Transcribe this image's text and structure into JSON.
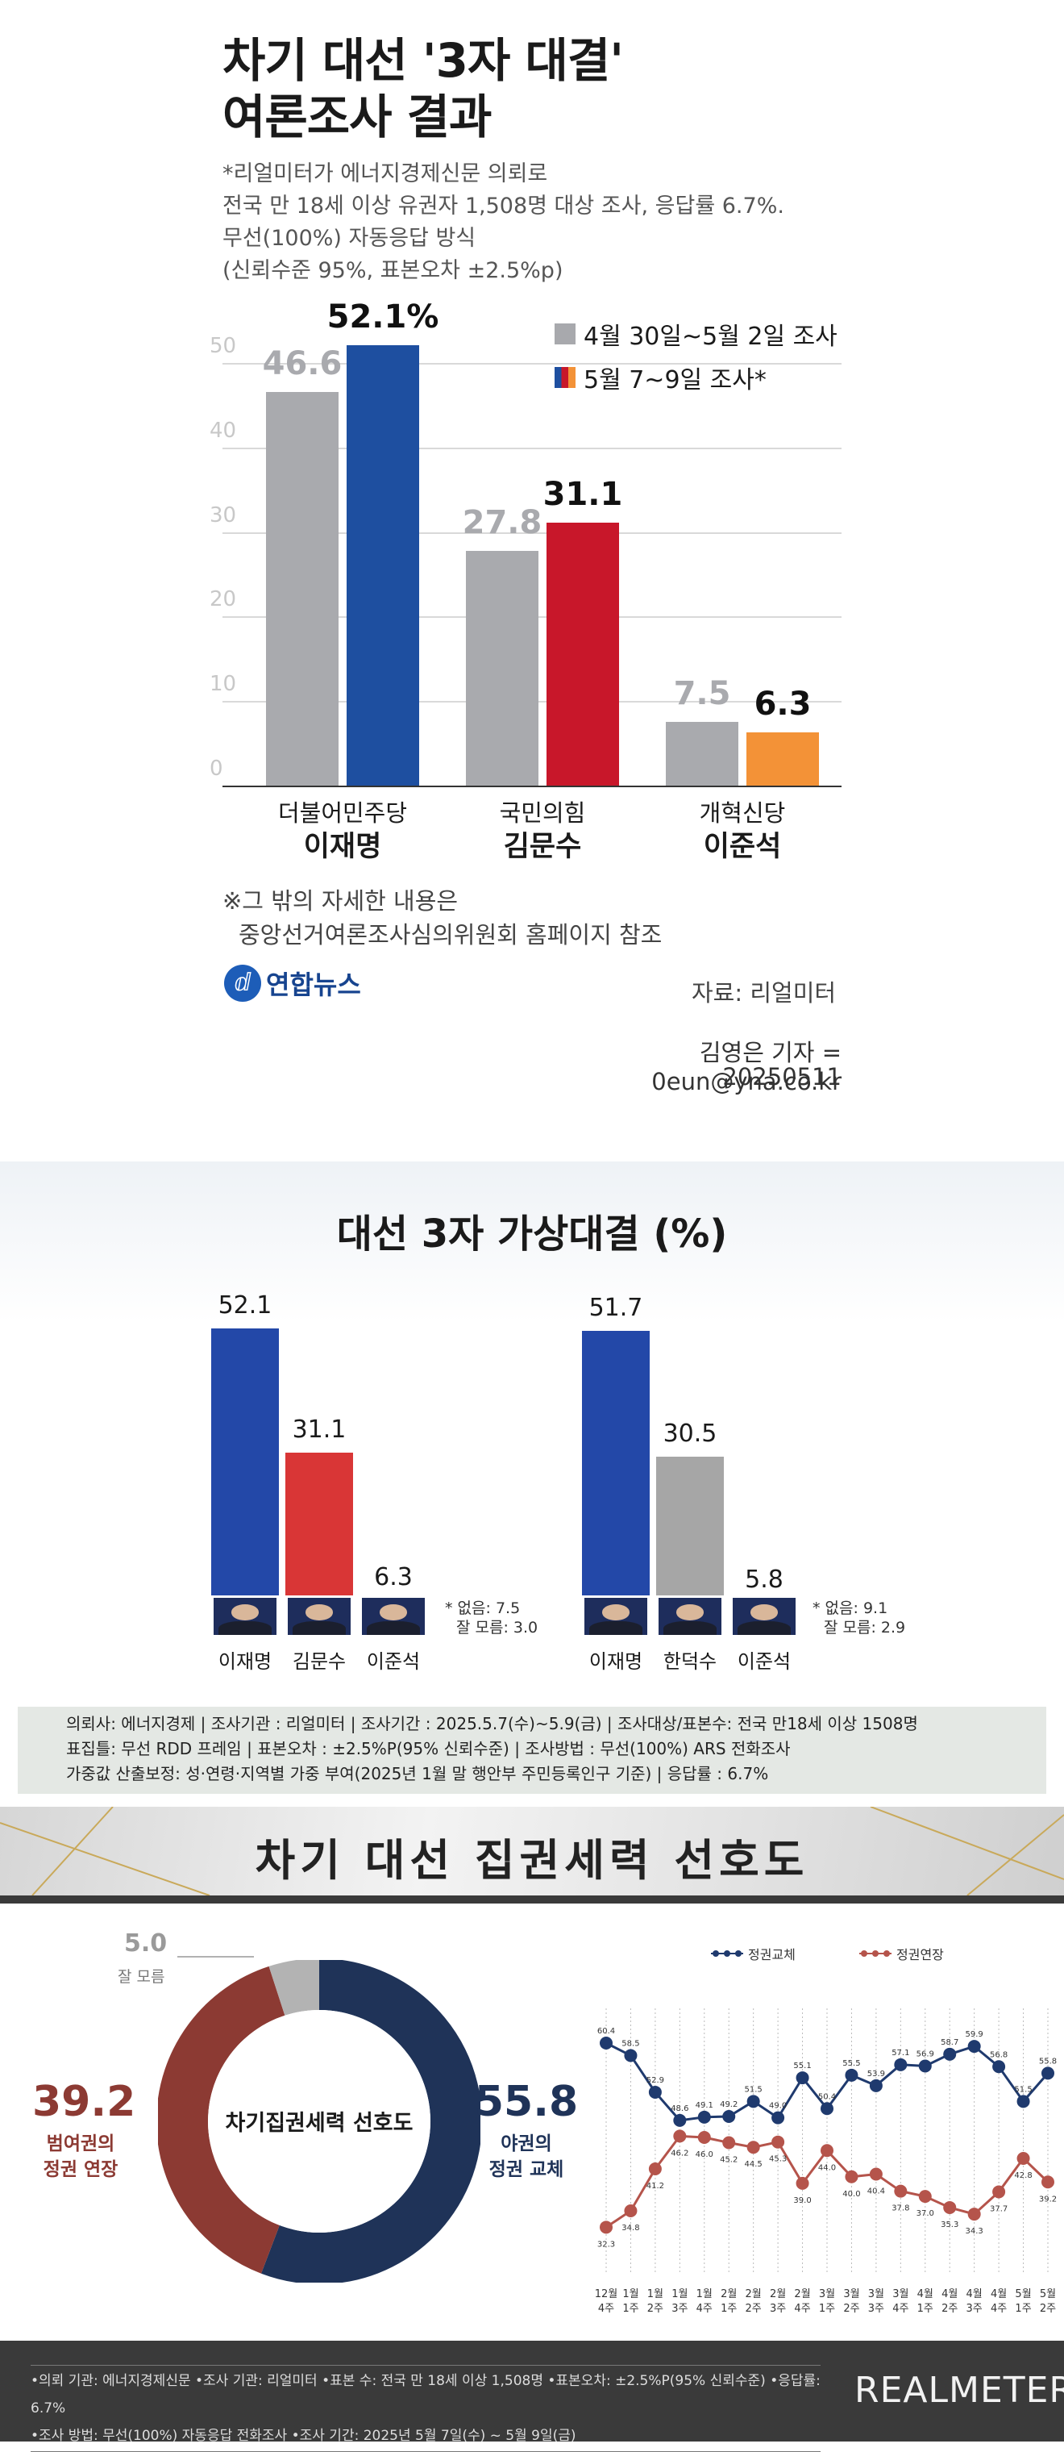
{
  "poll1": {
    "title_line1": "차기 대선 '3자 대결'",
    "title_line2": "여론조사 결과",
    "sub_lines": [
      "*리얼미터가 에너지경제신문 의뢰로",
      "전국 만 18세 이상 유권자 1,508명 대상 조사, 응답률 6.7%.",
      "무선(100%) 자동응답 방식",
      "(신뢰수준 95%, 표본오차 ±2.5%p)"
    ],
    "legend": [
      {
        "label": "4월 30일~5월 2일 조사",
        "color": "#a8a9ad"
      },
      {
        "label": "5월 7~9일 조사*",
        "color": "#1e4fa0"
      }
    ],
    "note_line1": "※그 밖의 자세한 내용은",
    "note_line2": "중앙선거여론조사심의위원회 홈페이지 참조",
    "logo": "연합뉴스",
    "source": "자료: 리얼미터",
    "reporter": "김영은 기자 = 0eun@yna.co.kr",
    "date": "20250511"
  },
  "poll2": {
    "title": "대선 3자 가상대결 (%)",
    "note_a1": "* 없음: 7.5",
    "note_a2": "잘 모름: 3.0",
    "note_b1": "* 없음: 9.1",
    "note_b2": "잘 모름: 2.9",
    "info_lines": [
      "의뢰사: 에너지경제 | 조사기관 : 리얼미터 | 조사기간 : 2025.5.7(수)~5.9(금) | 조사대상/표본수: 전국 만18세 이상 1508명",
      "표집틀: 무선 RDD 프레임 | 표본오차 : ±2.5%P(95% 신뢰수준) | 조사방법 : 무선(100%) ARS 전화조사",
      "가중값 산출보정: 성·연령·지역별 가중 부여(2025년 1월 말 행안부 주민등록인구 기준) | 응답률 : 6.7%"
    ]
  },
  "poll3": {
    "title": "차기 대선 집권세력 선호도",
    "donut_center": "차기집권세력 선호도",
    "seg_unknown_value": "5.0",
    "seg_unknown_label": "잘 모름",
    "seg_ruling_value": "39.2",
    "seg_ruling_label1": "범여권의",
    "seg_ruling_label2": "정권 연장",
    "seg_opp_value": "55.8",
    "seg_opp_label1": "야권의",
    "seg_opp_label2": "정권 교체",
    "legend_blue": "정권교체",
    "legend_red": "정권연장",
    "foot_line1": "•의뢰 기관: 에너지경제신문 •조사 기관: 리얼미터 •표본 수: 전국 만 18세 이상 1,508명 •표본오차: ±2.5%P(95% 신뢰수준) •응답률: 6.7%",
    "foot_line2": "•조사 방법: 무선(100%) 자동응답 전화조사 •조사 기간: 2025년 5월 7일(수) ~ 5월 9일(금)",
    "brand": "REALMETER"
  },
  "chart_data": [
    {
      "type": "bar",
      "title": "차기 대선 '3자 대결' 여론조사 결과",
      "categories": [
        "더불어민주당 이재명",
        "국민의힘 김문수",
        "개혁신당 이준석"
      ],
      "cat_party": [
        "더불어민주당",
        "국민의힘",
        "개혁신당"
      ],
      "cat_name": [
        "이재명",
        "김문수",
        "이준석"
      ],
      "series": [
        {
          "name": "4월 30일~5월 2일 조사",
          "values": [
            46.6,
            27.8,
            7.5
          ],
          "colors": [
            "#a9aaae",
            "#a9aaae",
            "#a9aaae"
          ]
        },
        {
          "name": "5월 7~9일 조사*",
          "values": [
            52.1,
            31.1,
            6.3
          ],
          "colors": [
            "#1e4fa0",
            "#c8172a",
            "#f39237"
          ]
        }
      ],
      "value_labels": [
        [
          "46.6",
          "27.8",
          "7.5"
        ],
        [
          "52.1%",
          "31.1",
          "6.3"
        ]
      ],
      "yticks": [
        "0",
        "10",
        "20",
        "30",
        "40",
        "50"
      ],
      "ylim": [
        0,
        50
      ],
      "grid": true,
      "legend": "top-right"
    },
    {
      "type": "bar",
      "title": "대선 3자 가상대결 (%)",
      "groups": [
        {
          "categories": [
            "이재명",
            "김문수",
            "이준석"
          ],
          "values": [
            52.1,
            31.1,
            6.3
          ],
          "labels": [
            "52.1",
            "31.1",
            "6.3"
          ],
          "colors": [
            "#2348a8",
            "#d93636",
            "#f0d03a"
          ]
        },
        {
          "categories": [
            "이재명",
            "한덕수",
            "이준석"
          ],
          "values": [
            51.7,
            30.5,
            5.8
          ],
          "labels": [
            "51.7",
            "30.5",
            "5.8"
          ],
          "colors": [
            "#2348a8",
            "#a6a6a6",
            "#f0d03a"
          ]
        }
      ]
    },
    {
      "type": "pie",
      "title": "차기 대선 집권세력 선호도",
      "slices": [
        {
          "label": "야권의 정권 교체",
          "value": 55.8,
          "color": "#1f3358"
        },
        {
          "label": "범여권의 정권 연장",
          "value": 39.2,
          "color": "#8c3a33"
        },
        {
          "label": "잘 모름",
          "value": 5.0,
          "color": "#b3b3b3"
        }
      ]
    },
    {
      "type": "line",
      "x": [
        "12월 4주",
        "1월 1주",
        "1월 2주",
        "1월 3주",
        "1월 4주",
        "2월 1주",
        "2월 2주",
        "2월 3주",
        "2월 4주",
        "3월 1주",
        "3월 2주",
        "3월 3주",
        "3월 4주",
        "4월 1주",
        "4월 2주",
        "4월 3주",
        "4월 4주",
        "5월 1주",
        "5월 2주"
      ],
      "x_month": [
        "12월",
        "1월",
        "1월",
        "1월",
        "1월",
        "2월",
        "2월",
        "2월",
        "2월",
        "3월",
        "3월",
        "3월",
        "3월",
        "4월",
        "4월",
        "4월",
        "4월",
        "5월",
        "5월"
      ],
      "x_week": [
        "4주",
        "1주",
        "2주",
        "3주",
        "4주",
        "1주",
        "2주",
        "3주",
        "4주",
        "1주",
        "2주",
        "3주",
        "4주",
        "1주",
        "2주",
        "3주",
        "4주",
        "1주",
        "2주"
      ],
      "series": [
        {
          "name": "정권교체",
          "color": "#1f3a6e",
          "values": [
            60.4,
            58.5,
            52.9,
            48.6,
            49.1,
            49.2,
            51.5,
            49.0,
            55.1,
            50.4,
            55.5,
            53.9,
            57.1,
            56.9,
            58.7,
            59.9,
            56.8,
            51.5,
            55.8
          ],
          "labels": [
            "60.4",
            "58.5",
            "52.9",
            "48.6",
            "49.1",
            "49.2",
            "51.5",
            "49.0",
            "55.1",
            "50.4",
            "55.5",
            "53.9",
            "57.1",
            "56.9",
            "58.7",
            "59.9",
            "56.8",
            "51.5",
            "55.8"
          ]
        },
        {
          "name": "정권연장",
          "color": "#b5544b",
          "values": [
            32.3,
            34.8,
            41.2,
            46.2,
            46.0,
            45.2,
            44.5,
            45.3,
            39.0,
            44.0,
            40.0,
            40.4,
            37.8,
            37.0,
            35.3,
            34.3,
            37.7,
            42.8,
            39.2
          ],
          "labels": [
            "32.3",
            "34.8",
            "41.2",
            "46.2",
            "46.0",
            "45.2",
            "44.5",
            "45.3",
            "39.0",
            "44.0",
            "40.0",
            "40.4",
            "37.8",
            "37.0",
            "35.3",
            "34.3",
            "37.7",
            "42.8",
            "39.2"
          ]
        }
      ]
    }
  ]
}
